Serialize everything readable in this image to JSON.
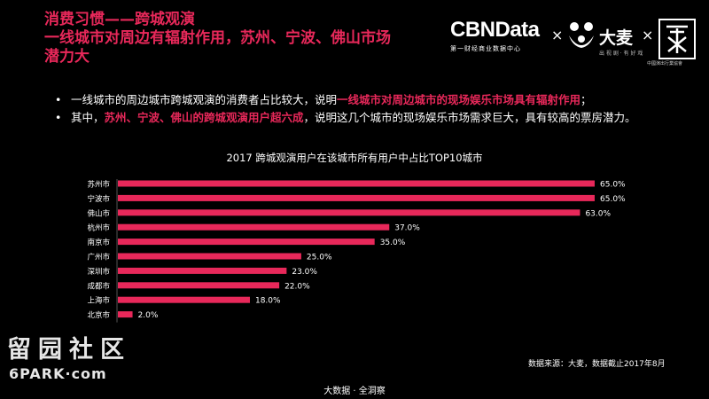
{
  "title": {
    "line1": "消费习惯——跨城观演",
    "line2": "一线城市对周边有辐射作用，苏州、宁波、佛山市场",
    "line3": "潜力大"
  },
  "logos": {
    "cbn": "CBNData",
    "cbn_sub": "第一财经商业数据中心",
    "times": "×",
    "damai": "大麦",
    "damai_sub": "出 视 剧 ·  有 好 戏",
    "seal_sub": "中國演出行業協會"
  },
  "bullets": [
    {
      "dot": "•",
      "pre": "一线城市的周边城市跨城观演的消费者占比较大，说明",
      "highlight": "一线城市对周边城市的现场娱乐市场具有辐射作用",
      "post": "；"
    },
    {
      "dot": "•",
      "pre": "其中，",
      "highlight": "苏州、宁波、佛山的跨城观演用户超六成",
      "post": "，说明这几个城市的现场娱乐市场需求巨大，具有较高的票房潜力。"
    }
  ],
  "chart_data": {
    "type": "bar",
    "orientation": "horizontal",
    "title": "2017 跨城观演用户在该城市所有用户中占比TOP10城市",
    "categories": [
      "苏州市",
      "宁波市",
      "佛山市",
      "杭州市",
      "南京市",
      "广州市",
      "深圳市",
      "成都市",
      "上海市",
      "北京市"
    ],
    "values": [
      65.0,
      65.0,
      63.0,
      37.0,
      35.0,
      25.0,
      23.0,
      22.0,
      18.0,
      2.0
    ],
    "labels": [
      "65.0%",
      "65.0%",
      "63.0%",
      "37.0%",
      "35.0%",
      "25.0%",
      "23.0%",
      "22.0%",
      "18.0%",
      "2.0%"
    ],
    "bar_color": "#e8285a",
    "xlim": [
      0,
      65
    ],
    "grid": false
  },
  "source": "数据来源：大麦，数据截止2017年8月",
  "footer": "大数据 · 全洞察",
  "watermark": {
    "cn": "留园社区",
    "en": "6PARK·com"
  }
}
